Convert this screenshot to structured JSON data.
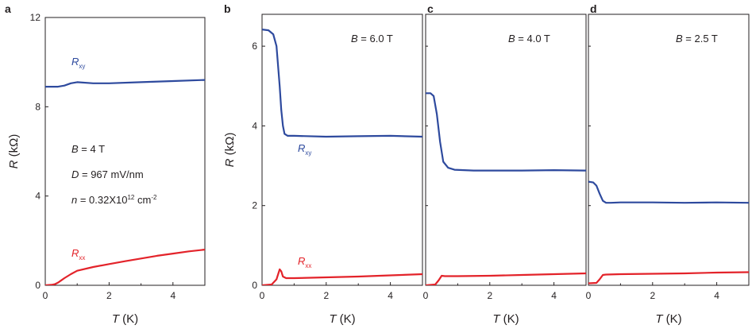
{
  "colors": {
    "rxy": "#2e4a9e",
    "rxx": "#e3232a",
    "axis": "#231f20"
  },
  "chart_data": [
    {
      "type": "line",
      "panel": "a",
      "ylabel_symbol": "R",
      "ylabel_unit": "(kΩ)",
      "xlabel_symbol": "T",
      "xlabel_unit": "(K)",
      "xlim": [
        0,
        5
      ],
      "ylim": [
        0,
        12
      ],
      "xticks": [
        "0",
        "2",
        "4"
      ],
      "xtick_values": [
        0,
        2,
        4
      ],
      "yticks": [
        "0",
        "4",
        "8",
        "12"
      ],
      "ytick_values": [
        0,
        4,
        8,
        12
      ],
      "annotations": [
        "B = 4 T",
        "D = 967 mV/nm",
        "n = 0.32X10¹² cm⁻²"
      ],
      "series": [
        {
          "name": "Rxy",
          "label_main": "R",
          "label_sub": "xy",
          "x": [
            0,
            0.4,
            0.6,
            0.8,
            1.0,
            1.5,
            2.0,
            3.0,
            4.0,
            5.0
          ],
          "y": [
            8.9,
            8.9,
            8.95,
            9.05,
            9.1,
            9.05,
            9.05,
            9.1,
            9.15,
            9.2
          ]
        },
        {
          "name": "Rxx",
          "label_main": "R",
          "label_sub": "xx",
          "x": [
            0,
            0.2,
            0.3,
            0.4,
            0.5,
            0.6,
            0.8,
            1.0,
            1.5,
            2.0,
            2.5,
            3.0,
            3.5,
            4.0,
            4.5,
            5.0
          ],
          "y": [
            0.0,
            0.02,
            0.05,
            0.12,
            0.22,
            0.32,
            0.5,
            0.65,
            0.82,
            0.95,
            1.08,
            1.2,
            1.32,
            1.42,
            1.52,
            1.6
          ]
        }
      ]
    },
    {
      "type": "line",
      "panel": "b",
      "ylabel_symbol": "R",
      "ylabel_unit": "(kΩ)",
      "xlabel_symbol": "T",
      "xlabel_unit": "(K)",
      "xlim": [
        0,
        5
      ],
      "ylim": [
        0,
        6.8
      ],
      "xticks": [
        "0",
        "2",
        "4"
      ],
      "xtick_values": [
        0,
        2,
        4
      ],
      "yticks": [
        "0",
        "2",
        "4",
        "6"
      ],
      "ytick_values": [
        0,
        2,
        4,
        6
      ],
      "annotations": [
        "B = 6.0 T"
      ],
      "series": [
        {
          "name": "Rxy",
          "label_main": "R",
          "label_sub": "xy",
          "x": [
            0,
            0.2,
            0.35,
            0.45,
            0.5,
            0.55,
            0.6,
            0.65,
            0.7,
            0.8,
            1.0,
            2.0,
            3.0,
            4.0,
            5.0
          ],
          "y": [
            6.42,
            6.4,
            6.3,
            6.0,
            5.5,
            5.0,
            4.4,
            4.0,
            3.8,
            3.75,
            3.75,
            3.73,
            3.74,
            3.75,
            3.73
          ]
        },
        {
          "name": "Rxx",
          "label_main": "R",
          "label_sub": "xx",
          "x": [
            0,
            0.3,
            0.45,
            0.55,
            0.6,
            0.65,
            0.75,
            1.0,
            2.0,
            3.0,
            4.0,
            5.0
          ],
          "y": [
            0.0,
            0.02,
            0.15,
            0.4,
            0.35,
            0.22,
            0.18,
            0.18,
            0.2,
            0.22,
            0.25,
            0.28
          ]
        }
      ]
    },
    {
      "type": "line",
      "panel": "c",
      "xlabel_symbol": "T",
      "xlabel_unit": "(K)",
      "xlim": [
        0,
        5
      ],
      "ylim": [
        0,
        6.8
      ],
      "xticks": [
        "0",
        "2",
        "4"
      ],
      "xtick_values": [
        0,
        2,
        4
      ],
      "annotations": [
        "B = 4.0 T"
      ],
      "series": [
        {
          "name": "Rxy",
          "x": [
            0,
            0.15,
            0.25,
            0.35,
            0.45,
            0.55,
            0.7,
            0.9,
            1.5,
            2.0,
            3.0,
            4.0,
            5.0
          ],
          "y": [
            4.82,
            4.82,
            4.75,
            4.3,
            3.6,
            3.1,
            2.95,
            2.9,
            2.88,
            2.88,
            2.88,
            2.89,
            2.88
          ]
        },
        {
          "name": "Rxx",
          "x": [
            0,
            0.3,
            0.4,
            0.5,
            0.6,
            1.0,
            2.0,
            3.0,
            4.0,
            5.0
          ],
          "y": [
            0.0,
            0.02,
            0.12,
            0.24,
            0.23,
            0.23,
            0.24,
            0.26,
            0.28,
            0.3
          ]
        }
      ]
    },
    {
      "type": "line",
      "panel": "d",
      "xlabel_symbol": "T",
      "xlabel_unit": "(K)",
      "xlim": [
        0,
        5
      ],
      "ylim": [
        0,
        6.8
      ],
      "xticks": [
        "0",
        "2",
        "4"
      ],
      "xtick_values": [
        0,
        2,
        4
      ],
      "annotations": [
        "B = 2.5 T"
      ],
      "series": [
        {
          "name": "Rxy",
          "x": [
            0,
            0.15,
            0.25,
            0.35,
            0.45,
            0.55,
            0.7,
            1.0,
            2.0,
            3.0,
            4.0,
            5.0
          ],
          "y": [
            2.6,
            2.58,
            2.5,
            2.3,
            2.12,
            2.07,
            2.07,
            2.08,
            2.08,
            2.07,
            2.08,
            2.07
          ]
        },
        {
          "name": "Rxx",
          "x": [
            0,
            0.25,
            0.35,
            0.45,
            0.55,
            1.0,
            2.0,
            3.0,
            4.0,
            5.0
          ],
          "y": [
            0.05,
            0.06,
            0.15,
            0.26,
            0.27,
            0.28,
            0.29,
            0.3,
            0.32,
            0.33
          ]
        }
      ]
    }
  ]
}
